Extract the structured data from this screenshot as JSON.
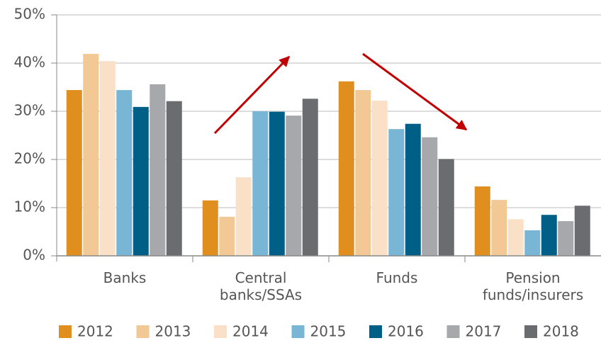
{
  "chart_data": {
    "type": "bar",
    "categories": [
      "Banks",
      "Central banks/SSAs",
      "Funds",
      "Pension funds/insurers"
    ],
    "series": [
      {
        "name": "2012",
        "color": "#e08e1e",
        "values": [
          34.4,
          11.5,
          36.2,
          14.4
        ]
      },
      {
        "name": "2013",
        "color": "#f2c894",
        "values": [
          41.9,
          8.1,
          34.4,
          11.6
        ]
      },
      {
        "name": "2014",
        "color": "#f9e0c6",
        "values": [
          40.4,
          16.3,
          32.2,
          7.6
        ]
      },
      {
        "name": "2015",
        "color": "#79b6d6",
        "values": [
          34.4,
          30.0,
          26.3,
          5.3
        ]
      },
      {
        "name": "2016",
        "color": "#005f86",
        "values": [
          30.9,
          29.9,
          27.4,
          8.5
        ]
      },
      {
        "name": "2017",
        "color": "#a6a8ab",
        "values": [
          35.6,
          29.1,
          24.6,
          7.2
        ]
      },
      {
        "name": "2018",
        "color": "#6a6c70",
        "values": [
          32.1,
          32.6,
          20.1,
          10.4
        ]
      }
    ],
    "ylim": [
      0,
      50
    ],
    "yticks": [
      {
        "value": 0,
        "label": "0%"
      },
      {
        "value": 10,
        "label": "10%"
      },
      {
        "value": 20,
        "label": "20%"
      },
      {
        "value": 30,
        "label": "30%"
      },
      {
        "value": 40,
        "label": "40%"
      },
      {
        "value": 50,
        "label": "50%"
      }
    ],
    "grid": true,
    "legend": "bottom"
  }
}
